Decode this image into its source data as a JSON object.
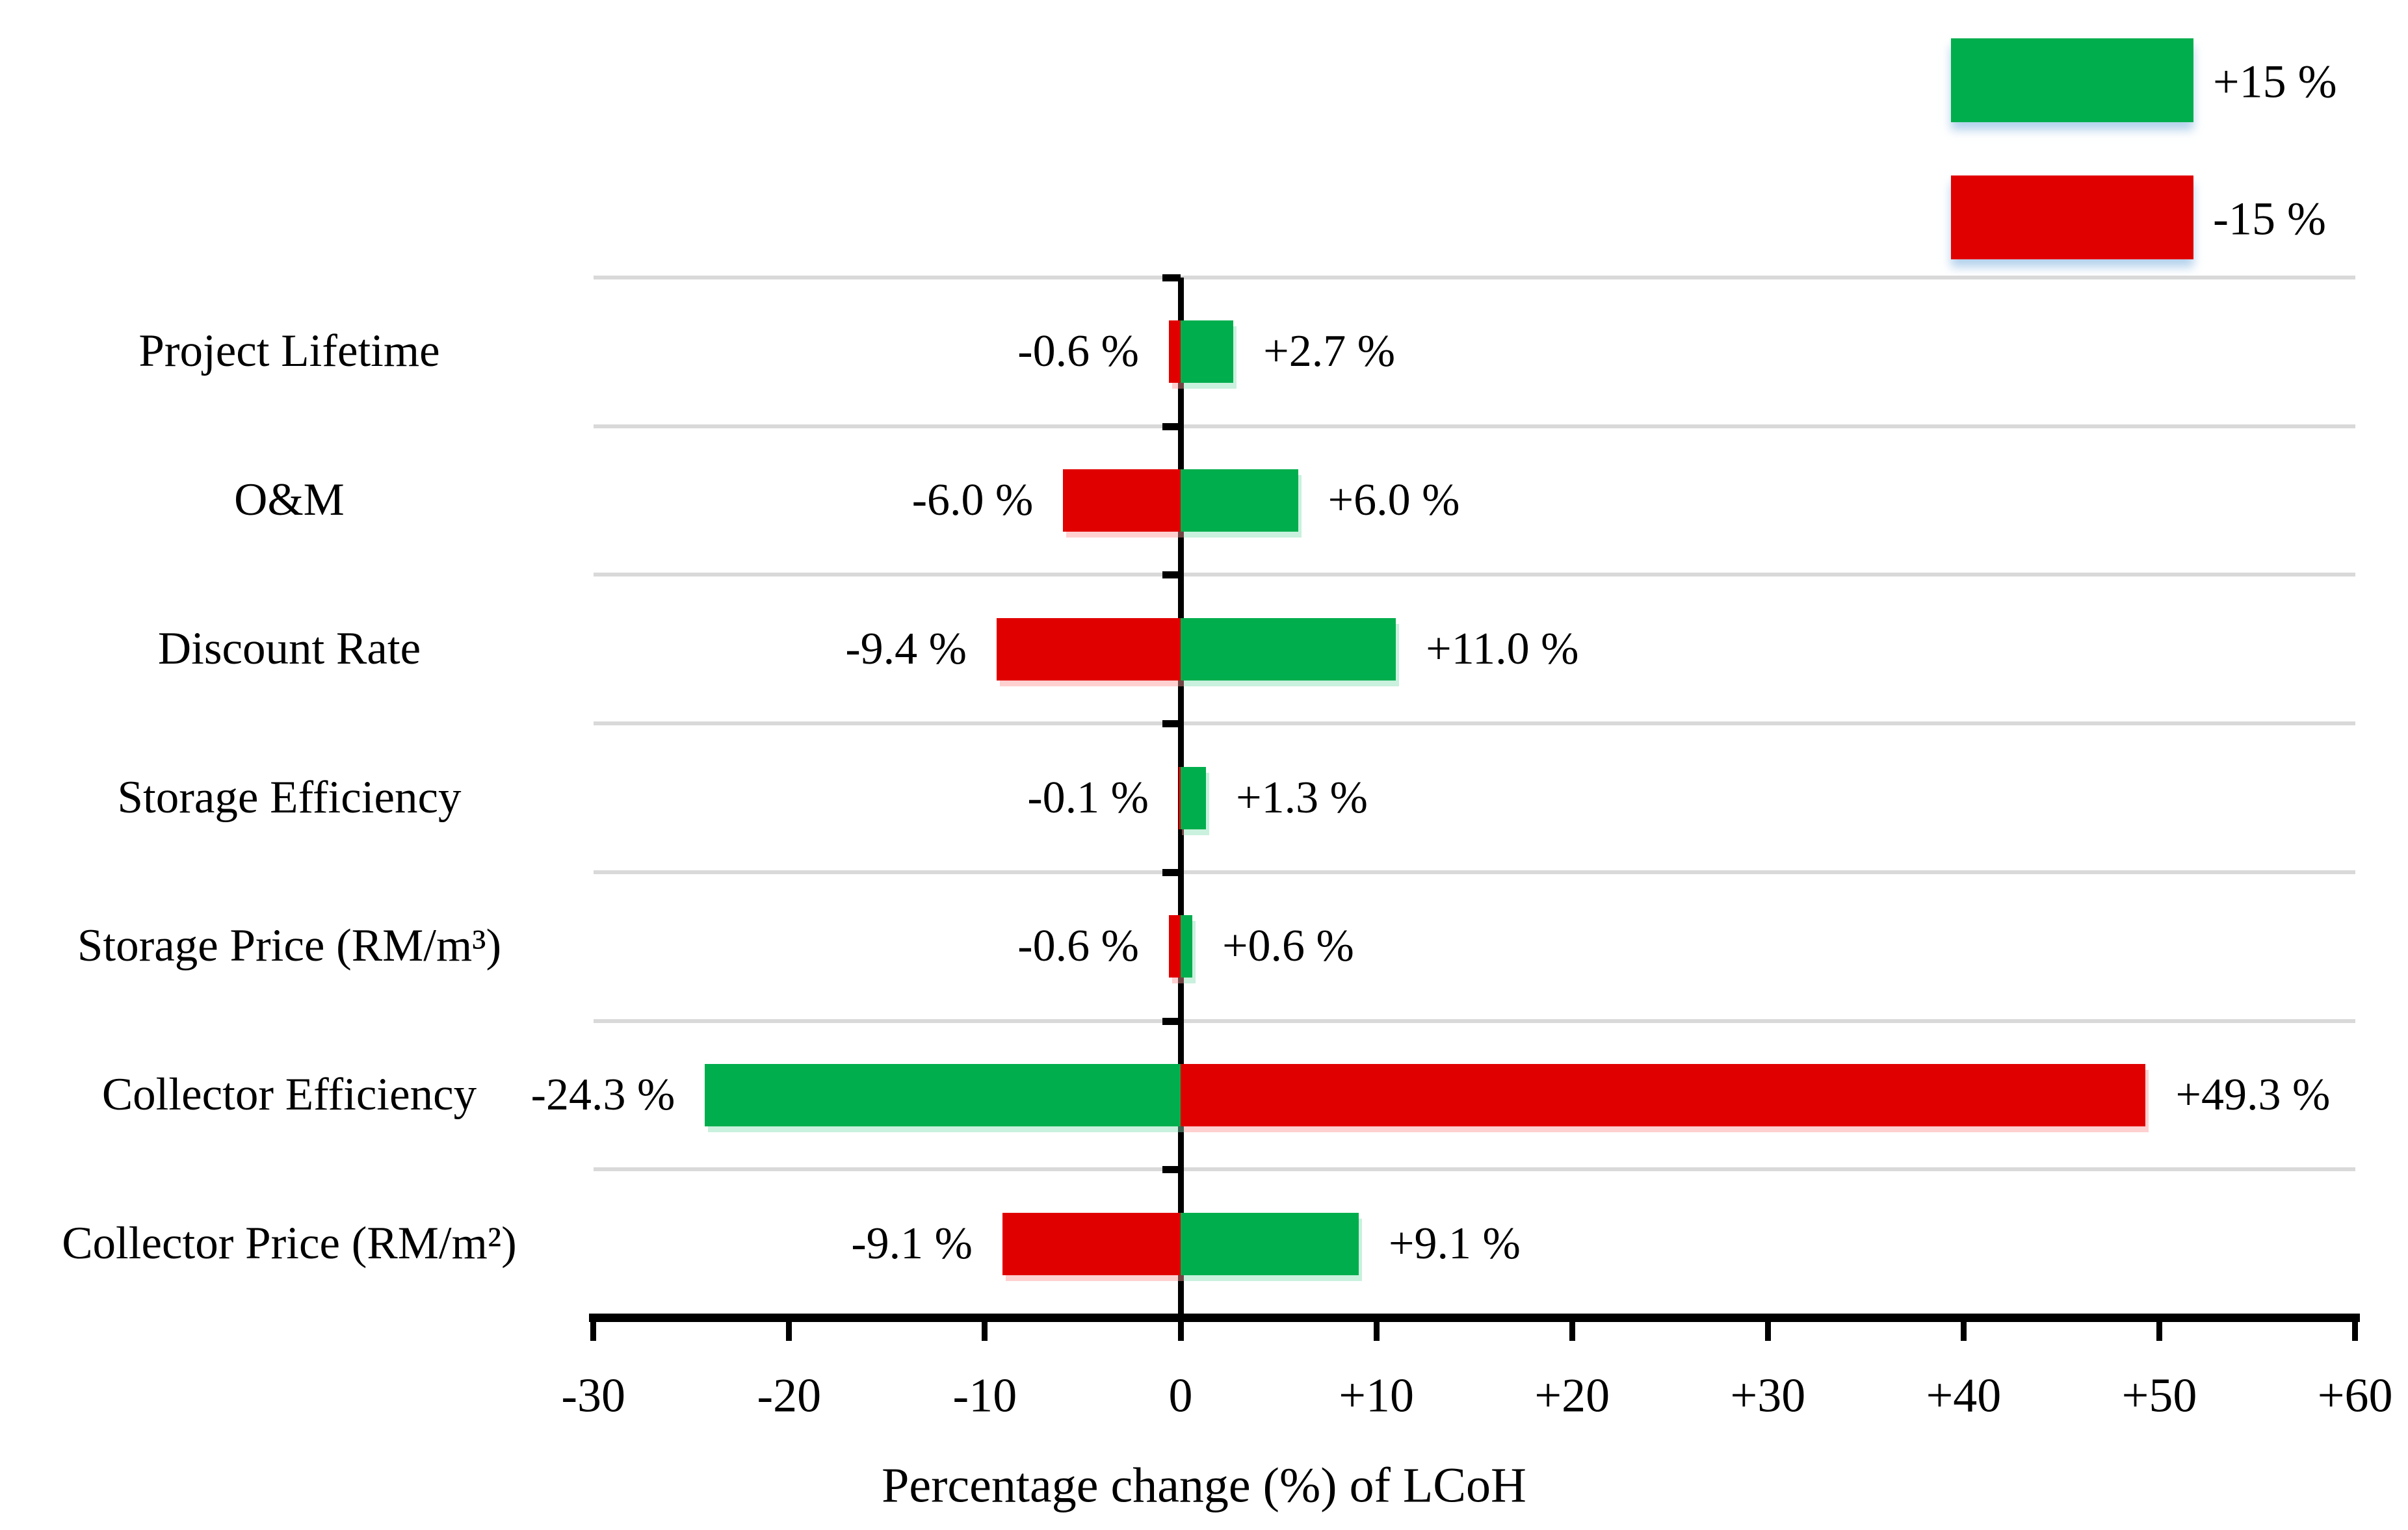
{
  "legend": {
    "items": [
      {
        "label": "+15 %",
        "color": "#00AE4D"
      },
      {
        "label": "-15 %",
        "color": "#E00000"
      }
    ]
  },
  "x_axis": {
    "title": "Percentage change (%) of LCoH",
    "ticks": [
      "-30",
      "-20",
      "-10",
      "0",
      "+10",
      "+20",
      "+30",
      "+40",
      "+50",
      "+60"
    ],
    "min": -30,
    "max": 60
  },
  "chart_data": {
    "type": "bar",
    "orientation": "horizontal",
    "title": "",
    "xlabel": "Percentage change (%) of LCoH",
    "ylabel": "",
    "xlim": [
      -30,
      60
    ],
    "x_tick_values": [
      -30,
      -20,
      -10,
      0,
      10,
      20,
      30,
      40,
      50,
      60
    ],
    "grid": "horizontal-row-separators",
    "legend_position": "top-right",
    "categories": [
      "Project Lifetime",
      "O&M",
      "Discount Rate",
      "Storage Efficiency",
      "Storage Price (RM/m³)",
      "Collector Efficiency",
      "Collector Price (RM/m²)"
    ],
    "series": [
      {
        "name": "+15 %",
        "color": "#00AE4D",
        "values": [
          2.7,
          6.0,
          11.0,
          1.3,
          0.6,
          -24.3,
          9.1
        ]
      },
      {
        "name": "-15 %",
        "color": "#E00000",
        "values": [
          -0.6,
          -6.0,
          -9.4,
          -0.1,
          -0.6,
          49.3,
          -9.1
        ]
      }
    ],
    "data_labels": {
      "negative_side": [
        "-0.6 %",
        "-6.0 %",
        "-9.4 %",
        "-0.1 %",
        "-0.6 %",
        "-24.3 %",
        "-9.1 %"
      ],
      "positive_side": [
        "+2.7 %",
        "+6.0 %",
        "+11.0 %",
        "+1.3 %",
        "+0.6 %",
        "+49.3 %",
        "+9.1 %"
      ]
    }
  },
  "rows": [
    {
      "category": "Project Lifetime",
      "neg": {
        "label": "-0.6 %",
        "value": -0.6,
        "color": "#E00000"
      },
      "pos": {
        "label": "+2.7 %",
        "value": 2.7,
        "color": "#00AE4D"
      }
    },
    {
      "category": "O&M",
      "neg": {
        "label": "-6.0 %",
        "value": -6.0,
        "color": "#E00000"
      },
      "pos": {
        "label": "+6.0 %",
        "value": 6.0,
        "color": "#00AE4D"
      }
    },
    {
      "category": "Discount Rate",
      "neg": {
        "label": "-9.4 %",
        "value": -9.4,
        "color": "#E00000"
      },
      "pos": {
        "label": "+11.0 %",
        "value": 11.0,
        "color": "#00AE4D"
      }
    },
    {
      "category": "Storage Efficiency",
      "neg": {
        "label": "-0.1 %",
        "value": -0.1,
        "color": "#E00000"
      },
      "pos": {
        "label": "+1.3 %",
        "value": 1.3,
        "color": "#00AE4D"
      }
    },
    {
      "category": "Storage Price (RM/m³)",
      "neg": {
        "label": "-0.6 %",
        "value": -0.6,
        "color": "#E00000"
      },
      "pos": {
        "label": "+0.6 %",
        "value": 0.6,
        "color": "#00AE4D"
      }
    },
    {
      "category": "Collector Efficiency",
      "neg": {
        "label": "-24.3 %",
        "value": -24.3,
        "color": "#00AE4D"
      },
      "pos": {
        "label": "+49.3 %",
        "value": 49.3,
        "color": "#E00000"
      }
    },
    {
      "category": "Collector Price (RM/m²)",
      "neg": {
        "label": "-9.1 %",
        "value": -9.1,
        "color": "#E00000"
      },
      "pos": {
        "label": "+9.1 %",
        "value": 9.1,
        "color": "#00AE4D"
      }
    }
  ]
}
